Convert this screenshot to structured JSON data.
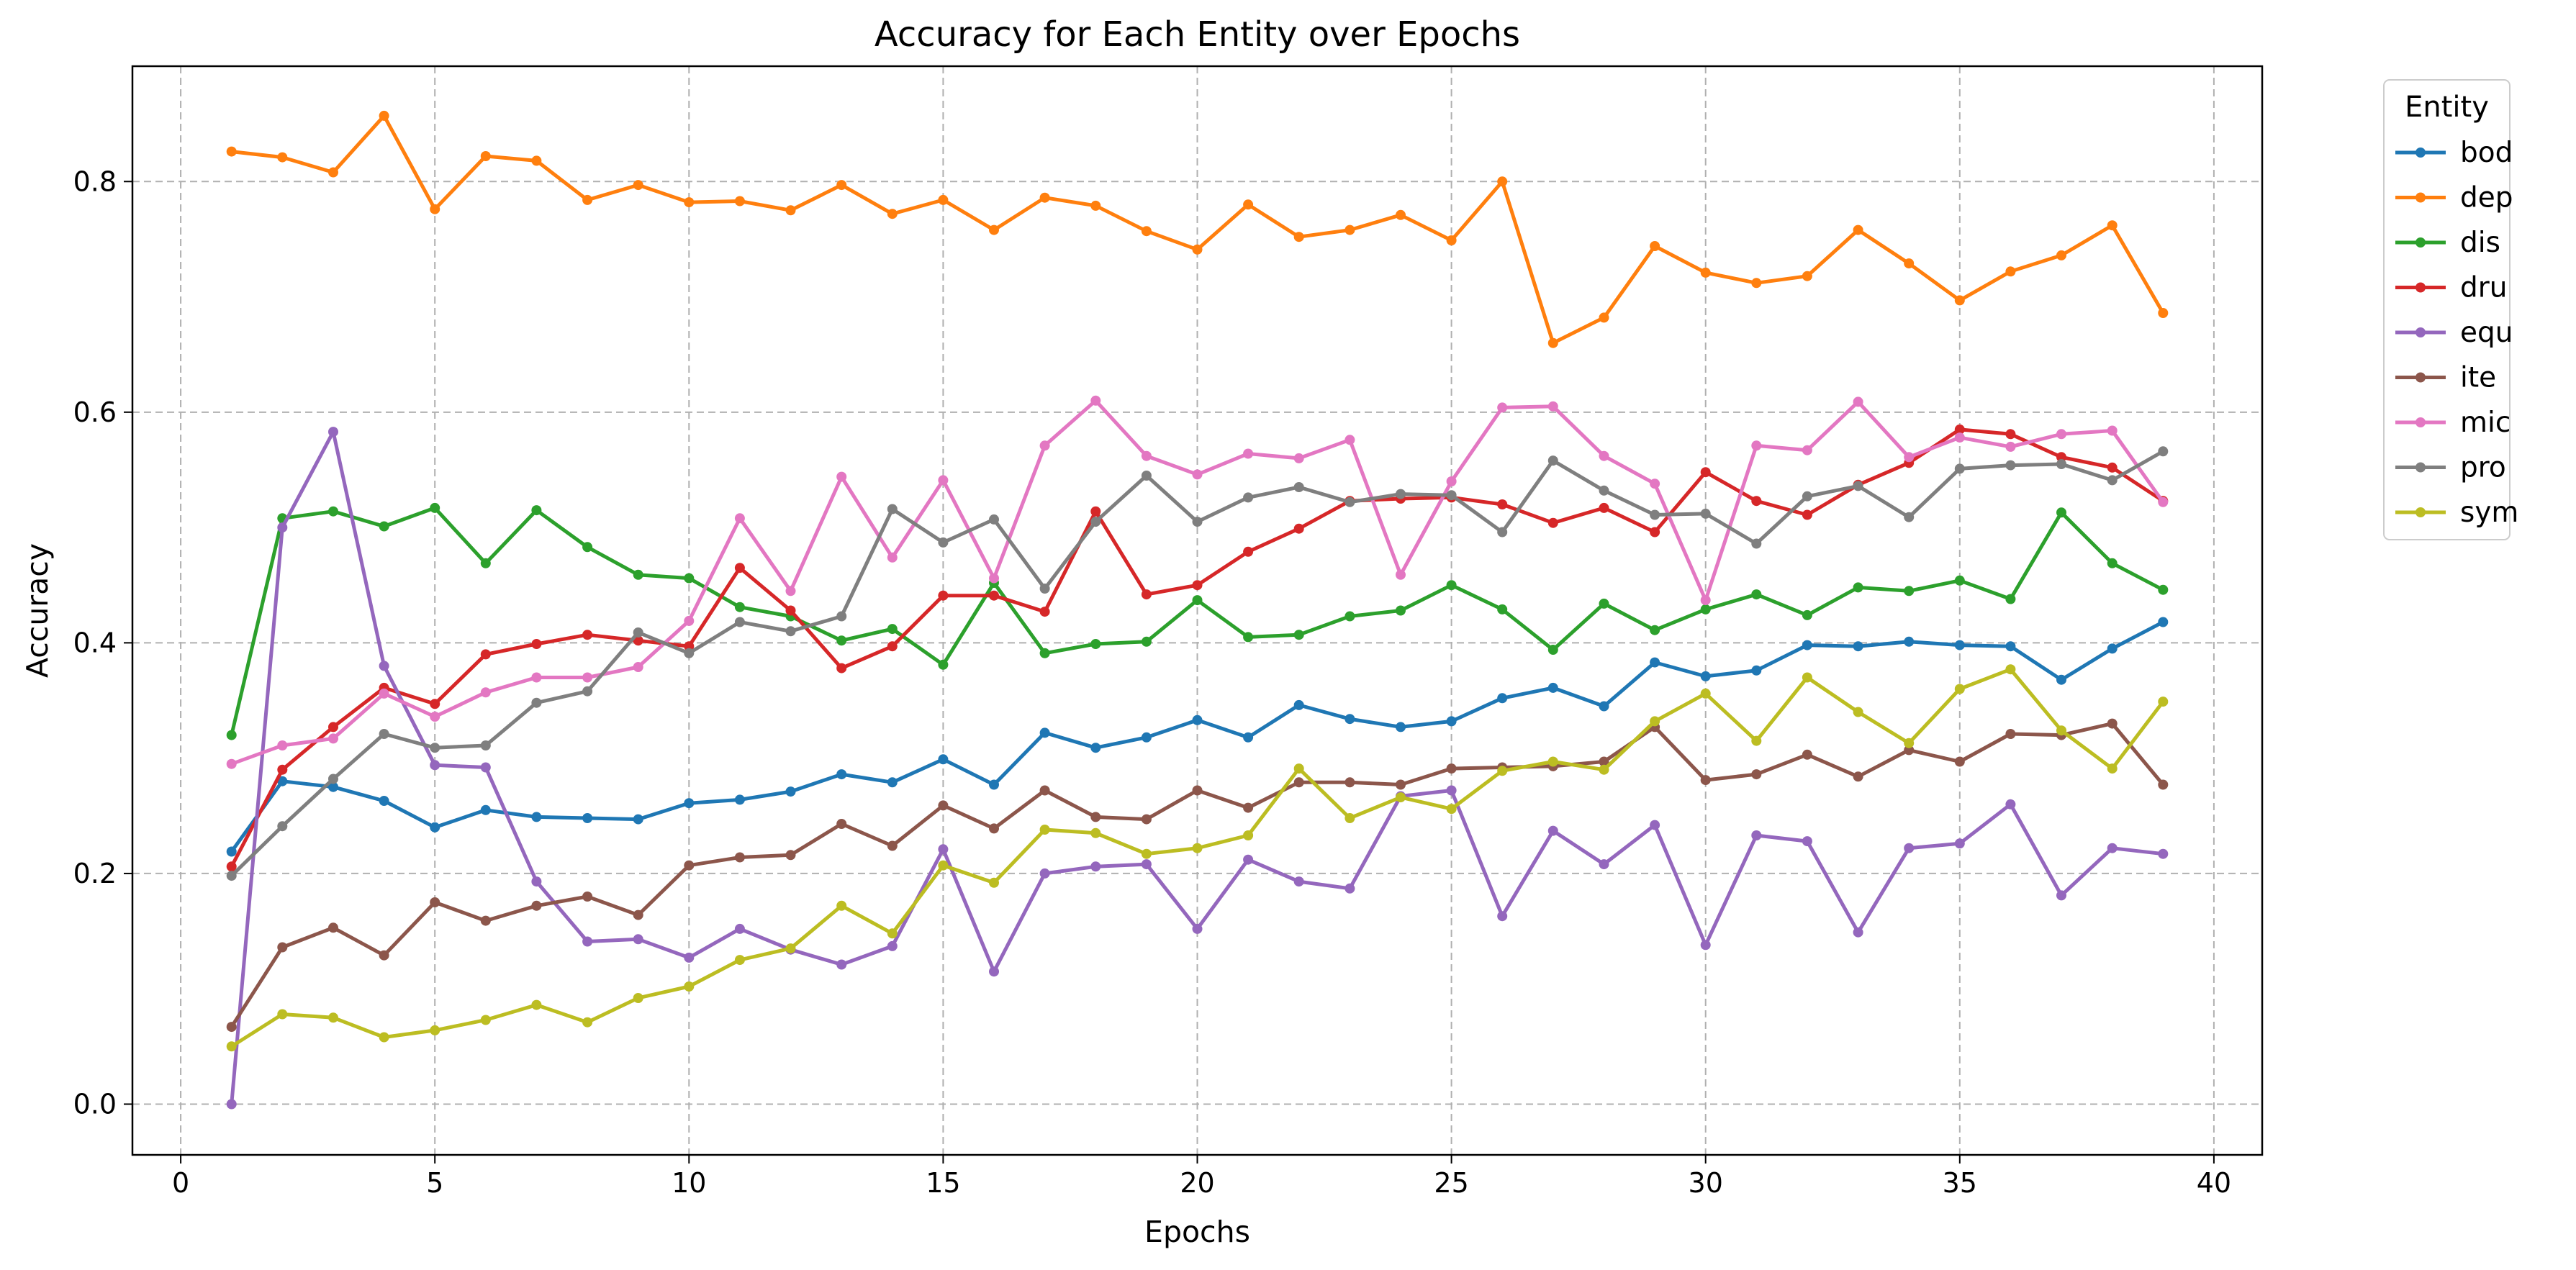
{
  "chart_data": {
    "type": "line",
    "title": "Accuracy for Each Entity over Epochs",
    "xlabel": "Epochs",
    "ylabel": "Accuracy",
    "xlim": [
      -0.95,
      40.95
    ],
    "ylim": [
      -0.044,
      0.9
    ],
    "xticks": [
      0,
      5,
      10,
      15,
      20,
      25,
      30,
      35,
      40
    ],
    "yticks": [
      0.0,
      0.2,
      0.4,
      0.6,
      0.8
    ],
    "ytick_labels": [
      "0.0",
      "0.2",
      "0.4",
      "0.6",
      "0.8"
    ],
    "grid": true,
    "legend": {
      "title": "Entity",
      "placement": "outside-right"
    },
    "x": [
      1,
      2,
      3,
      4,
      5,
      6,
      7,
      8,
      9,
      10,
      11,
      12,
      13,
      14,
      15,
      16,
      17,
      18,
      19,
      20,
      21,
      22,
      23,
      24,
      25,
      26,
      27,
      28,
      29,
      30,
      31,
      32,
      33,
      34,
      35,
      36,
      37,
      38,
      39
    ],
    "series": [
      {
        "name": "bod",
        "color": "#1f77b4",
        "values": [
          0.219,
          0.28,
          0.275,
          0.263,
          0.24,
          0.255,
          0.249,
          0.248,
          0.247,
          0.261,
          0.264,
          0.271,
          0.286,
          0.279,
          0.299,
          0.277,
          0.322,
          0.309,
          0.318,
          0.333,
          0.318,
          0.346,
          0.334,
          0.327,
          0.332,
          0.352,
          0.361,
          0.345,
          0.383,
          0.371,
          0.376,
          0.398,
          0.397,
          0.401,
          0.398,
          0.397,
          0.368,
          0.395,
          0.418
        ]
      },
      {
        "name": "dep",
        "color": "#ff7f0e",
        "values": [
          0.826,
          0.821,
          0.808,
          0.857,
          0.776,
          0.822,
          0.818,
          0.784,
          0.797,
          0.782,
          0.783,
          0.775,
          0.797,
          0.772,
          0.784,
          0.758,
          0.786,
          0.779,
          0.757,
          0.741,
          0.78,
          0.752,
          0.758,
          0.771,
          0.749,
          0.8,
          0.66,
          0.682,
          0.744,
          0.721,
          0.712,
          0.718,
          0.758,
          0.729,
          0.697,
          0.722,
          0.736,
          0.762,
          0.686
        ]
      },
      {
        "name": "dis",
        "color": "#2ca02c",
        "values": [
          0.32,
          0.508,
          0.514,
          0.501,
          0.517,
          0.469,
          0.515,
          0.483,
          0.459,
          0.456,
          0.431,
          0.423,
          0.402,
          0.412,
          0.381,
          0.452,
          0.391,
          0.399,
          0.401,
          0.437,
          0.405,
          0.407,
          0.423,
          0.428,
          0.45,
          0.429,
          0.394,
          0.434,
          0.411,
          0.429,
          0.442,
          0.424,
          0.448,
          0.445,
          0.454,
          0.438,
          0.513,
          0.469,
          0.446
        ]
      },
      {
        "name": "dru",
        "color": "#d62728",
        "values": [
          0.206,
          0.29,
          0.327,
          0.361,
          0.347,
          0.39,
          0.399,
          0.407,
          0.402,
          0.397,
          0.465,
          0.428,
          0.378,
          0.397,
          0.441,
          0.441,
          0.427,
          0.514,
          0.442,
          0.45,
          0.479,
          0.499,
          0.523,
          0.525,
          0.526,
          0.52,
          0.504,
          0.517,
          0.496,
          0.548,
          0.523,
          0.511,
          0.537,
          0.556,
          0.585,
          0.581,
          0.561,
          0.552,
          0.523
        ]
      },
      {
        "name": "equ",
        "color": "#9467bd",
        "values": [
          0.0,
          0.5,
          0.583,
          0.38,
          0.294,
          0.292,
          0.193,
          0.141,
          0.143,
          0.127,
          0.152,
          0.134,
          0.121,
          0.137,
          0.221,
          0.115,
          0.2,
          0.206,
          0.208,
          0.152,
          0.212,
          0.193,
          0.187,
          0.267,
          0.272,
          0.163,
          0.237,
          0.208,
          0.242,
          0.138,
          0.233,
          0.228,
          0.149,
          0.222,
          0.226,
          0.26,
          0.181,
          0.222,
          0.217
        ]
      },
      {
        "name": "ite",
        "color": "#8c564b",
        "values": [
          0.067,
          0.136,
          0.153,
          0.129,
          0.175,
          0.159,
          0.172,
          0.18,
          0.164,
          0.207,
          0.214,
          0.216,
          0.243,
          0.224,
          0.259,
          0.239,
          0.272,
          0.249,
          0.247,
          0.272,
          0.257,
          0.279,
          0.279,
          0.277,
          0.291,
          0.292,
          0.293,
          0.297,
          0.327,
          0.281,
          0.286,
          0.303,
          0.284,
          0.307,
          0.297,
          0.321,
          0.32,
          0.33,
          0.277
        ]
      },
      {
        "name": "mic",
        "color": "#e377c2",
        "values": [
          0.295,
          0.311,
          0.317,
          0.356,
          0.336,
          0.357,
          0.37,
          0.37,
          0.379,
          0.419,
          0.508,
          0.445,
          0.544,
          0.474,
          0.541,
          0.456,
          0.571,
          0.61,
          0.562,
          0.546,
          0.564,
          0.56,
          0.576,
          0.459,
          0.54,
          0.604,
          0.605,
          0.562,
          0.538,
          0.437,
          0.571,
          0.567,
          0.609,
          0.561,
          0.578,
          0.57,
          0.581,
          0.584,
          0.522
        ]
      },
      {
        "name": "pro",
        "color": "#7f7f7f",
        "values": [
          0.198,
          0.241,
          0.282,
          0.321,
          0.309,
          0.311,
          0.348,
          0.358,
          0.409,
          0.391,
          0.418,
          0.41,
          0.423,
          0.516,
          0.487,
          0.507,
          0.447,
          0.505,
          0.545,
          0.505,
          0.526,
          0.535,
          0.522,
          0.529,
          0.528,
          0.496,
          0.558,
          0.532,
          0.511,
          0.512,
          0.486,
          0.527,
          0.536,
          0.509,
          0.551,
          0.554,
          0.555,
          0.541,
          0.566
        ]
      },
      {
        "name": "sym",
        "color": "#bcbd22",
        "values": [
          0.05,
          0.078,
          0.075,
          0.058,
          0.064,
          0.073,
          0.086,
          0.071,
          0.092,
          0.102,
          0.125,
          0.135,
          0.172,
          0.148,
          0.207,
          0.192,
          0.238,
          0.235,
          0.217,
          0.222,
          0.233,
          0.291,
          0.248,
          0.266,
          0.256,
          0.289,
          0.297,
          0.29,
          0.332,
          0.356,
          0.315,
          0.37,
          0.34,
          0.313,
          0.36,
          0.377,
          0.324,
          0.291,
          0.349
        ]
      }
    ]
  }
}
